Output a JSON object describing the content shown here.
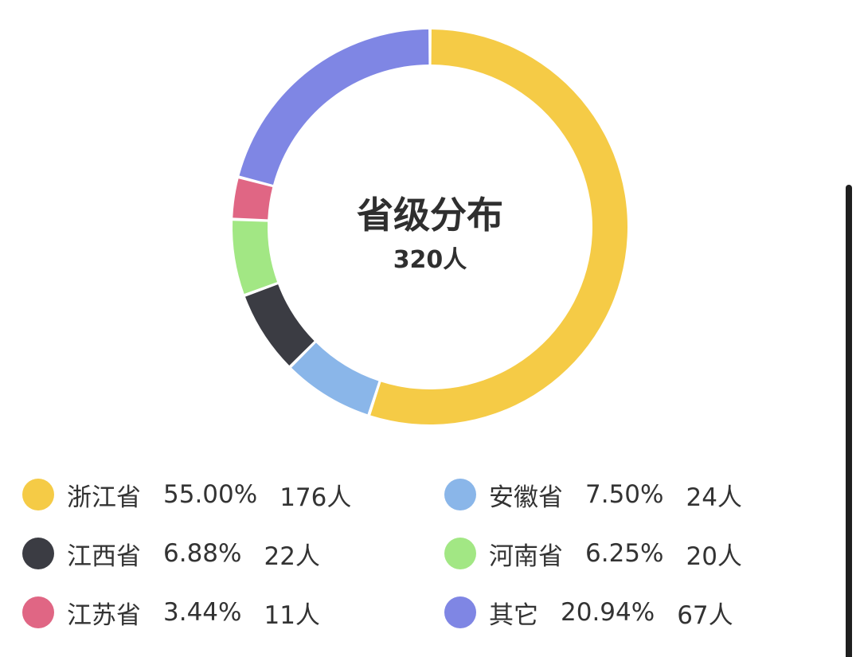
{
  "chart_data": {
    "type": "pie",
    "style": "donut",
    "title": "省级分布",
    "total_label": "320人",
    "legend_position": "bottom",
    "slices": [
      {
        "name": "浙江省",
        "percent_label": "55.00%",
        "count_label": "176人",
        "value": 176,
        "color": "#F5CB46"
      },
      {
        "name": "安徽省",
        "percent_label": "7.50%",
        "count_label": "24人",
        "value": 24,
        "color": "#8AB6E9"
      },
      {
        "name": "江西省",
        "percent_label": "6.88%",
        "count_label": "22人",
        "value": 22,
        "color": "#3B3C43"
      },
      {
        "name": "河南省",
        "percent_label": "6.25%",
        "count_label": "20人",
        "value": 20,
        "color": "#A2E784"
      },
      {
        "name": "江苏省",
        "percent_label": "3.44%",
        "count_label": "11人",
        "value": 11,
        "color": "#E06684"
      },
      {
        "name": "其它",
        "percent_label": "20.94%",
        "count_label": "67人",
        "value": 67,
        "color": "#7F86E4"
      }
    ]
  }
}
